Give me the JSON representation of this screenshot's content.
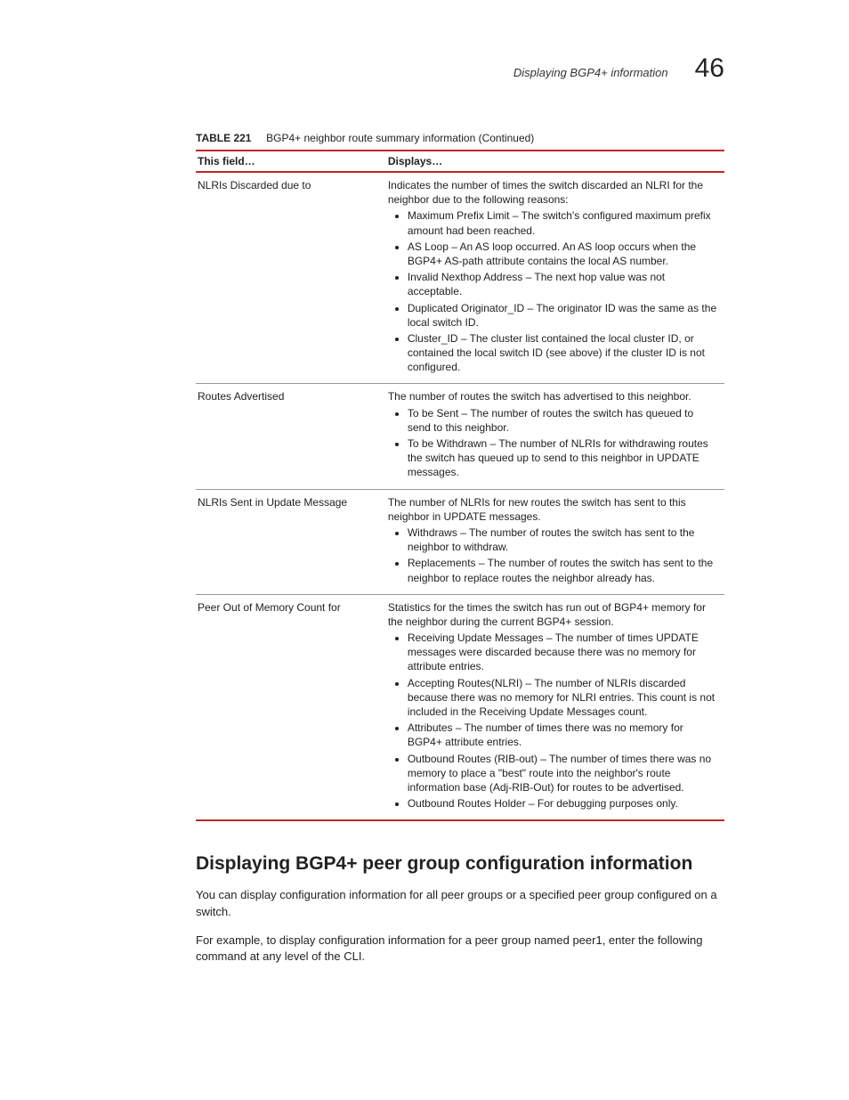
{
  "header": {
    "subtitle": "Displaying BGP4+ information",
    "chapter_number": "46"
  },
  "table": {
    "caption_label": "TABLE 221",
    "caption_text": "BGP4+ neighbor route summary information  (Continued)",
    "columns": [
      "This field…",
      "Displays…"
    ],
    "rows": [
      {
        "field": "NLRIs Discarded due to",
        "intro": "Indicates the number of times the switch discarded an NLRI for the neighbor due to the following reasons:",
        "bullets": [
          "Maximum Prefix Limit – The switch's configured maximum prefix amount had been reached.",
          "AS Loop – An AS loop occurred. An AS loop occurs when the BGP4+ AS-path attribute contains the local AS number.",
          "Invalid Nexthop Address – The next hop value was not acceptable.",
          "Duplicated Originator_ID – The originator ID was the same as the local switch ID.",
          "Cluster_ID – The cluster list contained the local cluster ID, or contained the local switch ID (see above) if the cluster ID is not configured."
        ]
      },
      {
        "field": "Routes Advertised",
        "intro": "The number of routes the switch has advertised to this neighbor.",
        "bullets": [
          "To be Sent – The number of routes the switch has queued to send to this neighbor.",
          "To be Withdrawn – The number of NLRIs for withdrawing routes the switch has queued up to send to this neighbor in UPDATE messages."
        ]
      },
      {
        "field": "NLRIs Sent in Update Message",
        "intro": "The number of NLRIs for new routes the switch has sent to this neighbor in UPDATE messages.",
        "bullets": [
          "Withdraws – The number of routes the switch has sent to the neighbor to withdraw.",
          "Replacements – The number of routes the switch has sent to the neighbor to replace routes the neighbor already has."
        ]
      },
      {
        "field": "Peer Out of Memory Count for",
        "intro": "Statistics for the times the switch has run out of BGP4+ memory for the neighbor during the current BGP4+ session.",
        "bullets": [
          "Receiving Update Messages – The number of times UPDATE messages were discarded because there was no memory for attribute entries.",
          "Accepting Routes(NLRI) – The number of NLRIs discarded because there was no memory for NLRI entries.  This count is not included in the Receiving Update Messages count.",
          "Attributes – The number of times there was no memory for BGP4+ attribute entries.",
          "Outbound Routes (RIB-out) – The number of times there was no memory to place a \"best\" route into the neighbor's route information base (Adj-RIB-Out) for routes to be advertised.",
          "Outbound Routes Holder – For debugging purposes only."
        ]
      }
    ]
  },
  "section": {
    "heading": "Displaying BGP4+ peer group configuration information",
    "para1": "You can display configuration information for all peer groups or a specified peer group configured on a switch.",
    "para2": "For example, to display configuration information for a peer group named peer1, enter the following command at any level of the CLI."
  }
}
